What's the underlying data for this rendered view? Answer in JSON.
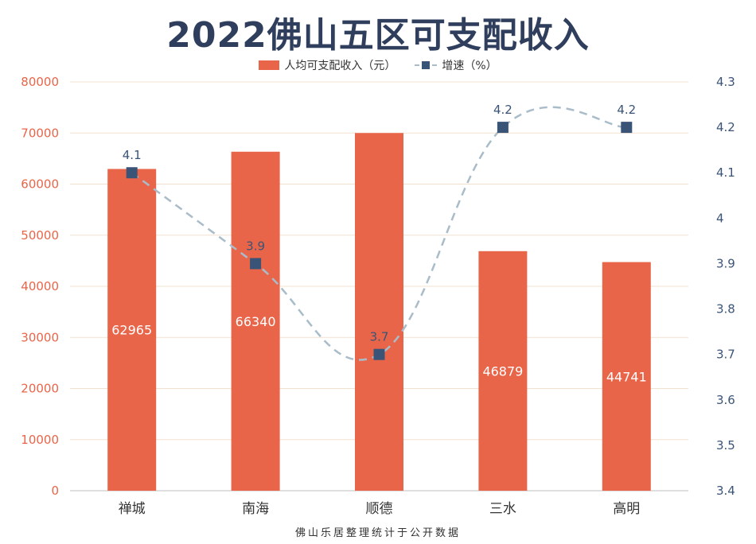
{
  "chart_data": {
    "type": "bar",
    "title": "2022佛山五区可支配收入",
    "categories": [
      "禅城",
      "南海",
      "顺德",
      "三水",
      "高明"
    ],
    "series": [
      {
        "name": "人均可支配收入（元）",
        "type": "bar",
        "axis": "left",
        "values": [
          62965,
          66340,
          70000,
          46879,
          44741
        ],
        "labels": [
          "62965",
          "66340",
          "",
          "46879",
          "44741"
        ]
      },
      {
        "name": "增速（%）",
        "type": "line",
        "axis": "right",
        "values": [
          4.1,
          3.9,
          3.7,
          4.2,
          4.2
        ],
        "labels": [
          "4.1",
          "3.9",
          "3.7",
          "4.2",
          "4.2"
        ]
      }
    ],
    "left_axis": {
      "range": [
        0,
        80000
      ],
      "ticks": [
        "0",
        "10000",
        "20000",
        "30000",
        "40000",
        "50000",
        "60000",
        "70000",
        "80000"
      ]
    },
    "right_axis": {
      "range": [
        3.4,
        4.3
      ],
      "ticks": [
        "3.4",
        "3.5",
        "3.6",
        "3.7",
        "3.8",
        "3.9",
        "4",
        "4.1",
        "4.2",
        "4.3"
      ]
    },
    "grid": true,
    "legend_position": "top-center",
    "source": "佛山乐居整理统计于公开数据",
    "colors": {
      "bar": "#e9654a",
      "line": "#a9bcc9",
      "marker": "#3a5478",
      "left_tick": "#e9654a",
      "right_tick": "#3a5478",
      "title": "#2f3e5c"
    }
  }
}
